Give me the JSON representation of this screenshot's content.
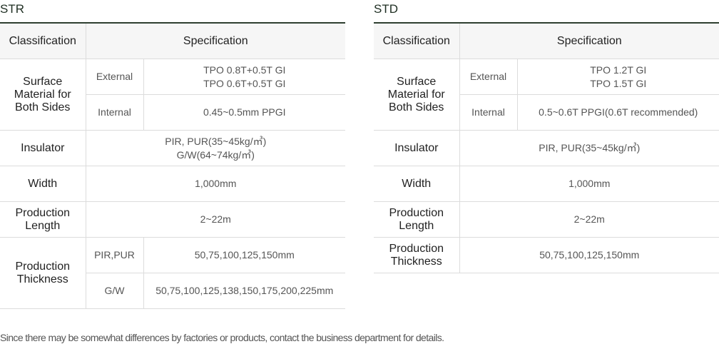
{
  "str": {
    "title": "STR",
    "header": {
      "classification": "Classification",
      "specification": "Specification"
    },
    "surface": {
      "label_1": "Surface",
      "label_2": "Material for",
      "label_3": "Both Sides",
      "external_label": "External",
      "external_value_1": "TPO 0.8T+0.5T GI",
      "external_value_2": "TPO 0.6T+0.5T GI",
      "internal_label": "Internal",
      "internal_value": "0.45~0.5mm PPGI"
    },
    "insulator": {
      "label": "Insulator",
      "value_1": "PIR, PUR(35~45kg/㎥)",
      "value_2": "G/W(64~74kg/㎥)"
    },
    "width": {
      "label": "Width",
      "value": "1,000mm"
    },
    "length": {
      "label_1": "Production",
      "label_2": "Length",
      "value": "2~22m"
    },
    "thickness": {
      "label_1": "Production",
      "label_2": "Thickness",
      "pir_label": "PIR,PUR",
      "pir_value": "50,75,100,125,150mm",
      "gw_label": "G/W",
      "gw_value": "50,75,100,125,138,150,175,200,225mm"
    }
  },
  "std": {
    "title": "STD",
    "header": {
      "classification": "Classification",
      "specification": "Specification"
    },
    "surface": {
      "label_1": "Surface",
      "label_2": "Material for",
      "label_3": "Both Sides",
      "external_label": "External",
      "external_value_1": "TPO 1.2T GI",
      "external_value_2": "TPO 1.5T GI",
      "internal_label": "Internal",
      "internal_value": "0.5~0.6T PPGI(0.6T recommended)"
    },
    "insulator": {
      "label": "Insulator",
      "value": "PIR, PUR(35~45kg/㎥)"
    },
    "width": {
      "label": "Width",
      "value": "1,000mm"
    },
    "length": {
      "label_1": "Production",
      "label_2": "Length",
      "value": "2~22m"
    },
    "thickness": {
      "label_1": "Production",
      "label_2": "Thickness",
      "value": "50,75,100,125,150mm"
    }
  },
  "note": "Since there may be somewhat differences by factories or products, contact the business department for details.",
  "colors": {
    "title_rule": "#2e3f30",
    "header_bg": "#f6f6f6",
    "grid": "#dcdcdc"
  }
}
